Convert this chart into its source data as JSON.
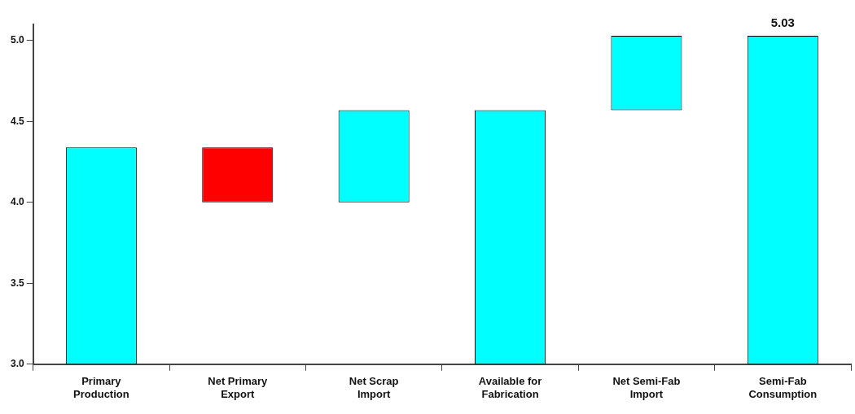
{
  "chart_data": {
    "type": "bar",
    "categories": [
      "Primary Production",
      "Net Primary Export",
      "Net Scrap Import",
      "Available for Fabrication",
      "Net Semi-Fab Import",
      "Semi-Fab Consumption"
    ],
    "values": [
      4.34,
      -0.34,
      0.57,
      4.57,
      0.46,
      5.03
    ],
    "base": [
      null,
      4.34,
      4.0,
      null,
      4.57,
      null
    ],
    "colors": [
      "#00ffff",
      "#ff0000",
      "#00ffff",
      "#00ffff",
      "#00ffff",
      "#00ffff"
    ],
    "value_labels": [
      null,
      null,
      null,
      null,
      null,
      "5.03"
    ],
    "ylim": [
      3.0,
      5.1
    ],
    "yticks": [
      {
        "value": 3,
        "label": "3.0"
      },
      {
        "value": 3.5,
        "label": "3.5"
      },
      {
        "value": 4,
        "label": "4.0"
      },
      {
        "value": 4.5,
        "label": "4.5"
      },
      {
        "value": 5,
        "label": "5.0"
      }
    ],
    "grid": false,
    "legend": false
  }
}
